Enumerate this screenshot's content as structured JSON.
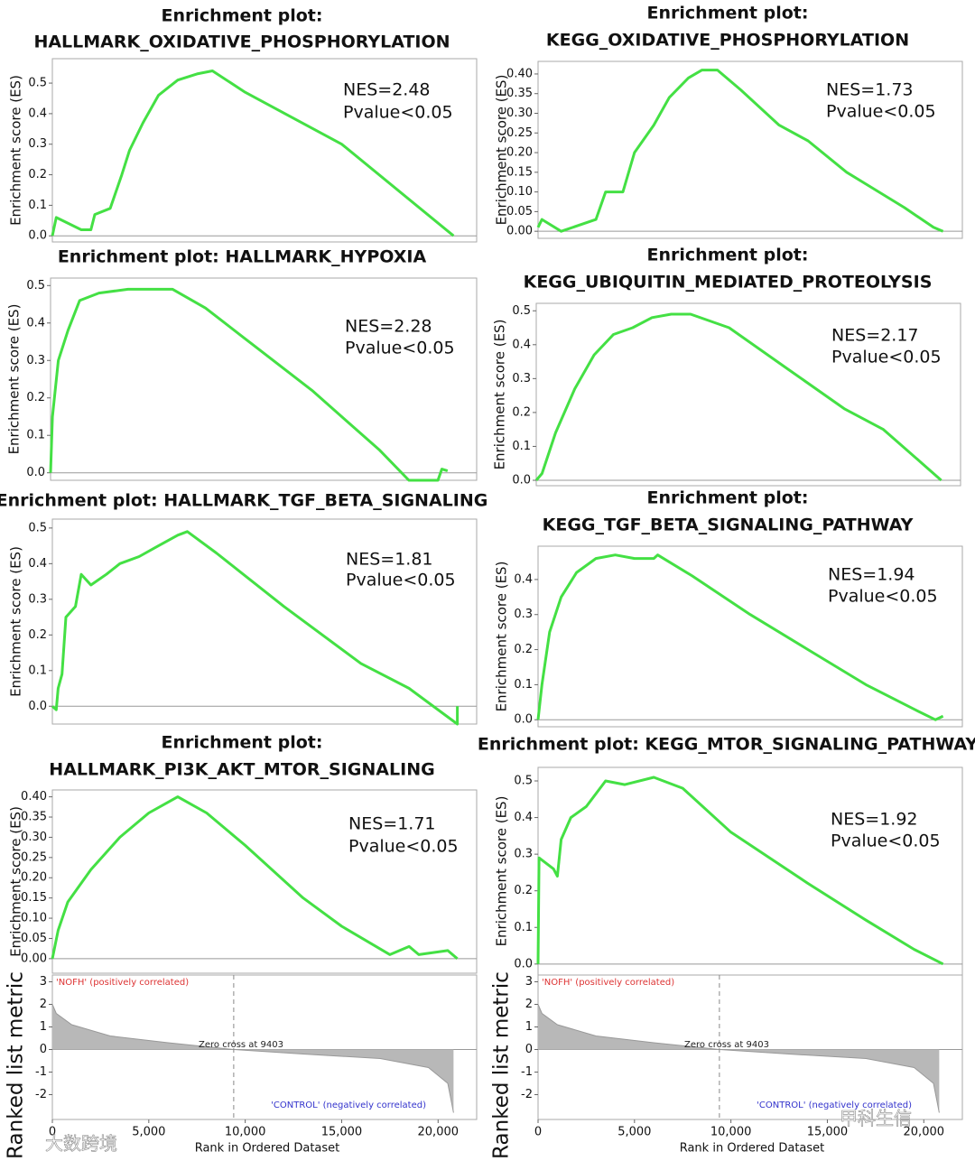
{
  "chart_data": [
    {
      "type": "line",
      "title_lines": [
        "Enrichment plot:",
        "HALLMARK_OXIDATIVE_PHOSPHORYLATION"
      ],
      "ylabel": "Enrichment score (ES)",
      "annotations": [
        "NES=2.48",
        "Pvalue<0.05"
      ],
      "color": "#44e044",
      "x": [
        0,
        200,
        1500,
        2000,
        2200,
        3000,
        3600,
        4000,
        4700,
        5500,
        6500,
        7500,
        8300,
        10000,
        15000,
        20800
      ],
      "values": [
        0,
        0.06,
        0.02,
        0.02,
        0.07,
        0.09,
        0.2,
        0.28,
        0.37,
        0.46,
        0.51,
        0.53,
        0.54,
        0.47,
        0.3,
        0.0
      ],
      "xlim": [
        0,
        22000
      ],
      "ylim": [
        -0.02,
        0.58
      ],
      "yticks": [
        {
          "value": 0,
          "label": "0.0"
        },
        0.1,
        0.2,
        0.3,
        0.4,
        0.5
      ]
    },
    {
      "type": "line",
      "title_lines": [
        "Enrichment plot:",
        "KEGG_OXIDATIVE_PHOSPHORYLATION"
      ],
      "ylabel": "Enrichment score (ES)",
      "annotations": [
        "NES=1.73",
        "Pvalue<0.05"
      ],
      "color": "#44e044",
      "x": [
        0,
        200,
        1200,
        3000,
        3500,
        4400,
        5000,
        6000,
        6800,
        7800,
        8500,
        9300,
        10500,
        12500,
        14000,
        16000,
        17000,
        19000,
        20500,
        21000
      ],
      "values": [
        0.01,
        0.03,
        0.0,
        0.03,
        0.1,
        0.1,
        0.2,
        0.27,
        0.34,
        0.39,
        0.41,
        0.41,
        0.36,
        0.27,
        0.23,
        0.15,
        0.12,
        0.06,
        0.01,
        0.0
      ],
      "xlim": [
        0,
        22000
      ],
      "ylim": [
        -0.018,
        0.432
      ],
      "yticks": [
        {
          "value": 0,
          "label": "0.00"
        },
        {
          "value": 0.05,
          "label": "0.05"
        },
        {
          "value": 0.1,
          "label": "0.10"
        },
        {
          "value": 0.15,
          "label": "0.15"
        },
        {
          "value": 0.2,
          "label": "0.20"
        },
        {
          "value": 0.25,
          "label": "0.25"
        },
        {
          "value": 0.3,
          "label": "0.30"
        },
        {
          "value": 0.35,
          "label": "0.35"
        },
        {
          "value": 0.4,
          "label": "0.40"
        }
      ]
    },
    {
      "type": "line",
      "title_lines": [
        "Enrichment plot: HALLMARK_HYPOXIA"
      ],
      "ylabel": "Enrichment score (ES)",
      "annotations": [
        "NES=2.28",
        "Pvalue<0.05"
      ],
      "color": "#44e044",
      "x": [
        0,
        100,
        400,
        900,
        1500,
        2500,
        4000,
        5500,
        6300,
        8000,
        10000,
        13500,
        17000,
        18500,
        20000,
        20200,
        20500
      ],
      "values": [
        0,
        0.15,
        0.3,
        0.38,
        0.46,
        0.48,
        0.49,
        0.49,
        0.49,
        0.44,
        0.36,
        0.22,
        0.06,
        -0.02,
        -0.02,
        0.01,
        0.005
      ],
      "xlim": [
        0,
        22000
      ],
      "ylim": [
        -0.02,
        0.52
      ],
      "yticks": [
        {
          "value": 0,
          "label": "0.0"
        },
        0.1,
        0.2,
        0.3,
        0.4,
        0.5
      ]
    },
    {
      "type": "line",
      "title_lines": [
        "Enrichment plot:",
        "KEGG_UBIQUITIN_MEDIATED_PROTEOLYSIS"
      ],
      "ylabel": "Enrichment score (ES)",
      "annotations": [
        "NES=2.17",
        "Pvalue<0.05"
      ],
      "color": "#44e044",
      "x": [
        0,
        300,
        1000,
        2000,
        3000,
        4000,
        5000,
        6000,
        7000,
        8000,
        10000,
        13000,
        16000,
        18000,
        20000,
        21000
      ],
      "values": [
        0,
        0.02,
        0.14,
        0.27,
        0.37,
        0.43,
        0.45,
        0.48,
        0.49,
        0.49,
        0.45,
        0.33,
        0.21,
        0.15,
        0.05,
        0.0
      ],
      "xlim": [
        0,
        22000
      ],
      "ylim": [
        -0.016,
        0.522
      ],
      "yticks": [
        {
          "value": 0,
          "label": "0.0"
        },
        0.1,
        0.2,
        0.3,
        0.4,
        0.5
      ]
    },
    {
      "type": "line",
      "title_lines": [
        "Enrichment plot: HALLMARK_TGF_BETA_SIGNALING"
      ],
      "ylabel": "Enrichment score (ES)",
      "annotations": [
        "NES=1.81",
        "Pvalue<0.05"
      ],
      "color": "#44e044",
      "x": [
        0,
        200,
        300,
        500,
        700,
        1200,
        1500,
        2000,
        2800,
        3500,
        4500,
        5500,
        6500,
        7000,
        8500,
        12000,
        16000,
        18500,
        21000,
        21000
      ],
      "values": [
        0,
        -0.01,
        0.05,
        0.09,
        0.25,
        0.28,
        0.37,
        0.34,
        0.37,
        0.4,
        0.42,
        0.45,
        0.48,
        0.49,
        0.43,
        0.28,
        0.12,
        0.05,
        -0.05,
        0.0
      ],
      "xlim": [
        0,
        22000
      ],
      "ylim": [
        -0.05,
        0.525
      ],
      "yticks": [
        {
          "value": 0,
          "label": "0.0"
        },
        0.1,
        0.2,
        0.3,
        0.4,
        0.5
      ]
    },
    {
      "type": "line",
      "title_lines": [
        "Enrichment plot:",
        "KEGG_TGF_BETA_SIGNALING_PATHWAY"
      ],
      "ylabel": "Enrichment score (ES)",
      "annotations": [
        "NES=1.94",
        "Pvalue<0.05"
      ],
      "color": "#44e044",
      "x": [
        0,
        200,
        600,
        1200,
        2000,
        3000,
        4000,
        5000,
        6000,
        6200,
        8000,
        11000,
        14000,
        17000,
        19500,
        20600,
        21000
      ],
      "values": [
        0,
        0.1,
        0.25,
        0.35,
        0.42,
        0.46,
        0.47,
        0.46,
        0.46,
        0.47,
        0.41,
        0.3,
        0.2,
        0.1,
        0.03,
        0.0,
        0.01
      ],
      "xlim": [
        0,
        22000
      ],
      "ylim": [
        -0.02,
        0.495
      ],
      "yticks": [
        {
          "value": 0,
          "label": "0.0"
        },
        0.1,
        0.2,
        0.3,
        0.4
      ]
    },
    {
      "type": "line",
      "title_lines": [
        "Enrichment plot:",
        "HALLMARK_PI3K_AKT_MTOR_SIGNALING"
      ],
      "ylabel": "Enrichment score (ES)",
      "annotations": [
        "NES=1.71",
        "Pvalue<0.05"
      ],
      "color": "#44e044",
      "x": [
        0,
        300,
        800,
        2000,
        3500,
        5000,
        6500,
        8000,
        10000,
        13000,
        15000,
        17500,
        18500,
        19000,
        20500,
        21000
      ],
      "values": [
        0,
        0.07,
        0.14,
        0.22,
        0.3,
        0.36,
        0.4,
        0.36,
        0.28,
        0.15,
        0.08,
        0.01,
        0.03,
        0.01,
        0.02,
        0.0
      ],
      "xlim": [
        0,
        22000
      ],
      "ylim": [
        -0.036,
        0.417
      ],
      "yticks": [
        {
          "value": 0,
          "label": "0.00"
        },
        {
          "value": 0.05,
          "label": "0.05"
        },
        {
          "value": 0.1,
          "label": "0.10"
        },
        {
          "value": 0.15,
          "label": "0.15"
        },
        {
          "value": 0.2,
          "label": "0.20"
        },
        {
          "value": 0.25,
          "label": "0.25"
        },
        {
          "value": 0.3,
          "label": "0.30"
        },
        {
          "value": 0.35,
          "label": "0.35"
        },
        {
          "value": 0.4,
          "label": "0.40"
        }
      ]
    },
    {
      "type": "line",
      "title_lines": [
        "Enrichment plot: KEGG_MTOR_SIGNALING_PATHWAY"
      ],
      "ylabel": "Enrichment score (ES)",
      "annotations": [
        "NES=1.92",
        "Pvalue<0.05"
      ],
      "color": "#44e044",
      "x": [
        0,
        50,
        800,
        1000,
        1200,
        1700,
        2500,
        3500,
        4500,
        6000,
        7500,
        10000,
        14000,
        17000,
        19500,
        21000
      ],
      "values": [
        0,
        0.29,
        0.26,
        0.24,
        0.34,
        0.4,
        0.43,
        0.5,
        0.49,
        0.51,
        0.48,
        0.36,
        0.22,
        0.12,
        0.04,
        0.0
      ],
      "xlim": [
        0,
        22000
      ],
      "ylim": [
        -0.03,
        0.537
      ],
      "yticks": [
        {
          "value": 0,
          "label": "0.0"
        },
        0.1,
        0.2,
        0.3,
        0.4,
        0.5
      ]
    },
    {
      "type": "area",
      "ylabel": "Ranked list metric",
      "xlabel": "Rank in Ordered Dataset",
      "annotations": [
        "'NOFH' (positively correlated)",
        "Zero cross at 9403",
        "'CONTROL' (negatively correlated)"
      ],
      "zero_cross": 9403,
      "color": "#b8b8b8",
      "x": [
        0,
        200,
        1000,
        3000,
        6000,
        9403,
        13000,
        17000,
        19500,
        20500,
        20800
      ],
      "values": [
        2.0,
        1.6,
        1.1,
        0.6,
        0.3,
        0,
        -0.2,
        -0.4,
        -0.8,
        -1.5,
        -2.8
      ],
      "xlim": [
        0,
        22000
      ],
      "ylim": [
        -3.1,
        3.3
      ],
      "yticks": [
        -2,
        -1,
        0,
        1,
        2,
        3
      ],
      "xticks": [
        0,
        {
          "value": 5000,
          "label": "5,000"
        },
        {
          "value": 10000,
          "label": "10,000"
        },
        {
          "value": 15000,
          "label": "15,000"
        },
        {
          "value": 20000,
          "label": "20,000"
        }
      ]
    },
    {
      "type": "area",
      "ylabel": "Ranked list metric",
      "xlabel": "Rank in Ordered Dataset",
      "annotations": [
        "'NOFH' (positively correlated)",
        "Zero cross at 9403",
        "'CONTROL' (negatively correlated)"
      ],
      "zero_cross": 9403,
      "color": "#b8b8b8",
      "x": [
        0,
        200,
        1000,
        3000,
        6000,
        9403,
        13000,
        17000,
        19500,
        20500,
        20800
      ],
      "values": [
        2.0,
        1.6,
        1.1,
        0.6,
        0.3,
        0,
        -0.2,
        -0.4,
        -0.8,
        -1.5,
        -2.8
      ],
      "xlim": [
        0,
        22000
      ],
      "ylim": [
        -3.1,
        3.3
      ],
      "yticks": [
        -2,
        -1,
        0,
        1,
        2,
        3
      ],
      "xticks": [
        0,
        {
          "value": 5000,
          "label": "5,000"
        },
        {
          "value": 10000,
          "label": "10,000"
        },
        {
          "value": 15000,
          "label": "15,000"
        },
        {
          "value": 20000,
          "label": "20,000"
        }
      ]
    }
  ],
  "watermarks": [
    "大数跨境",
    "甲科生信"
  ]
}
